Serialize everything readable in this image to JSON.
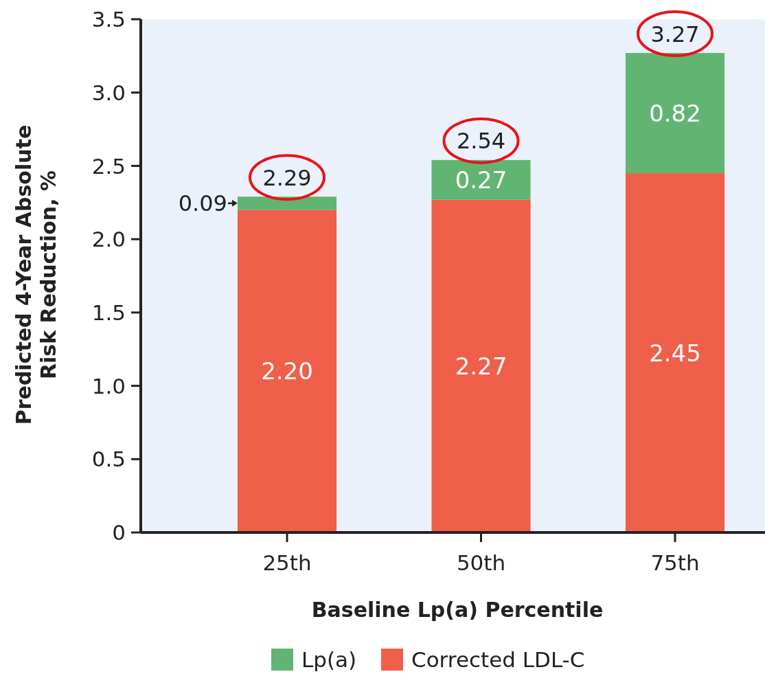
{
  "chart_data": {
    "type": "bar",
    "stacked": true,
    "xlabel": "Baseline Lp(a) Percentile",
    "ylabel": "Predicted 4-Year Absolute Risk Reduction, %",
    "categories": [
      "25th",
      "50th",
      "75th"
    ],
    "series": [
      {
        "name": "Corrected LDL-C",
        "color": "#ef5f49",
        "values": [
          2.2,
          2.27,
          2.45
        ],
        "value_labels": [
          "2.20",
          "2.27",
          "2.45"
        ]
      },
      {
        "name": "Lp(a)",
        "color": "#62b473",
        "values": [
          0.09,
          0.27,
          0.82
        ],
        "value_labels": [
          "0.09",
          "0.27",
          "0.82"
        ]
      }
    ],
    "totals": [
      "2.29",
      "2.54",
      "3.27"
    ],
    "ylim": [
      0,
      3.5
    ],
    "yticks": [
      0,
      0.5,
      {
        "value": 1,
        "label": "1.0"
      },
      1.5,
      {
        "value": 2,
        "label": "2.0"
      },
      2.5,
      {
        "value": 3,
        "label": "3.0"
      },
      3.5
    ],
    "grid": false,
    "legend": "bottom"
  }
}
